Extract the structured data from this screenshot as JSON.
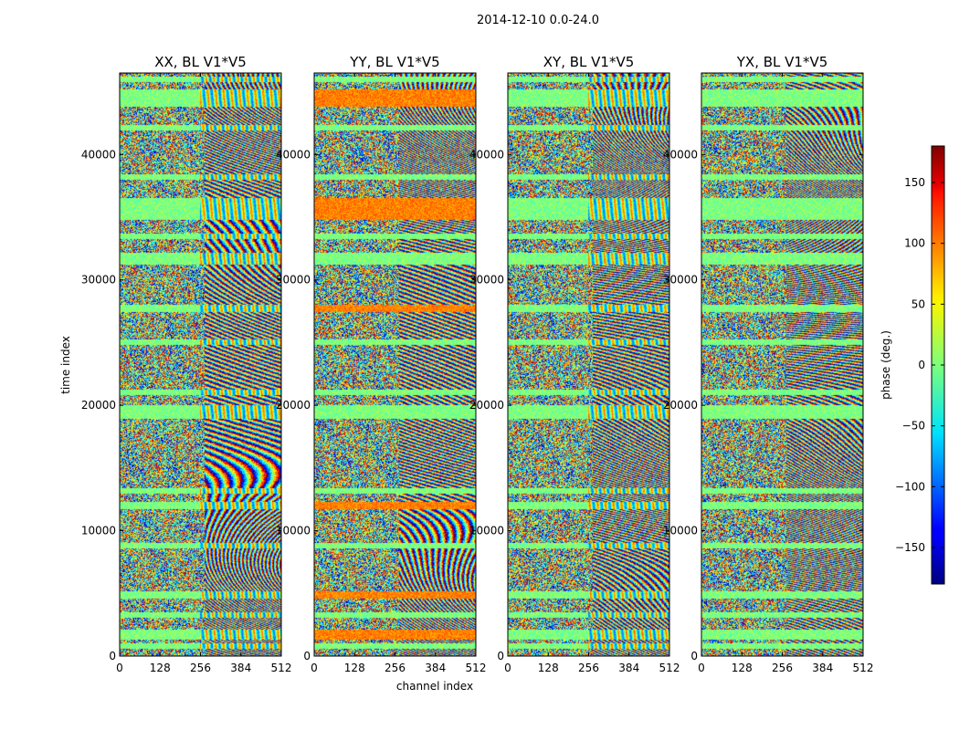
{
  "chart_data": {
    "type": "heatmap",
    "suptitle": "2014-12-10 0.0-24.0",
    "xlabel": "channel index",
    "ylabel": "time index",
    "xlim": [
      0,
      512
    ],
    "ylim": [
      0,
      46500
    ],
    "x_ticks": [
      "0",
      "128",
      "256",
      "384",
      "512"
    ],
    "x_tick_values": [
      0,
      128,
      256,
      384,
      512
    ],
    "y_ticks": [
      "0",
      "10000",
      "20000",
      "30000",
      "40000"
    ],
    "y_tick_values": [
      0,
      10000,
      20000,
      30000,
      40000
    ],
    "panels": [
      {
        "title": "XX, BL V1*V5"
      },
      {
        "title": "YY, BL V1*V5"
      },
      {
        "title": "XY, BL V1*V5"
      },
      {
        "title": "YX, BL V1*V5"
      }
    ],
    "colorbar": {
      "label": "phase (deg.)",
      "range": [
        -180,
        180
      ],
      "ticks": [
        "150",
        "100",
        "50",
        "0",
        "−50",
        "−100",
        "−150"
      ],
      "tick_values": [
        150,
        100,
        50,
        0,
        -50,
        -100,
        -150
      ],
      "colormap": "jet"
    },
    "note": "phase of cross-correlation per channel (x) and time sample (y); wrapped to [-180, 180] degrees"
  }
}
